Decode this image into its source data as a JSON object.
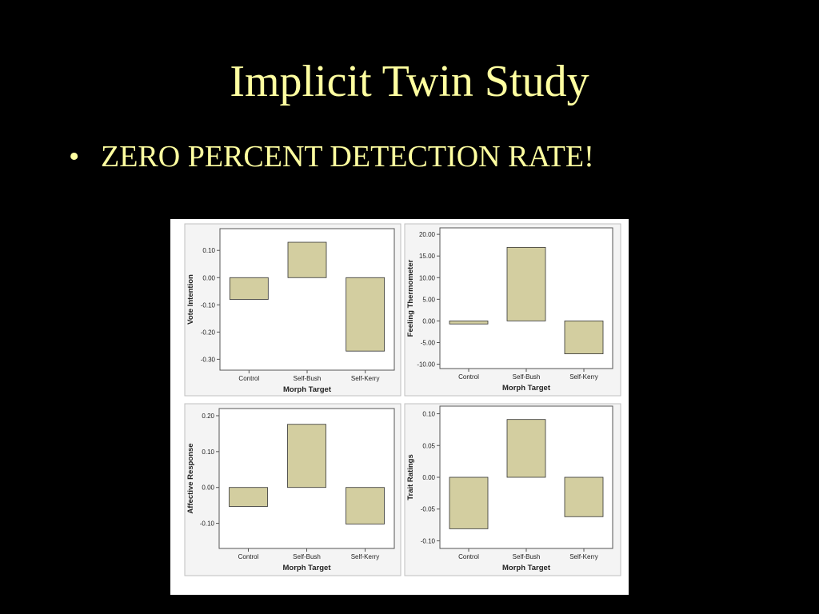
{
  "slide": {
    "title": "Implicit Twin Study",
    "bullet_marker": "•",
    "bullet_text": "ZERO PERCENT DETECTION RATE!",
    "colors": {
      "background": "#000000",
      "text": "#FFFFA0",
      "bar_fill": "#d3cea0"
    }
  },
  "chart_data": [
    {
      "type": "bar",
      "ylabel": "Vote Intention",
      "xlabel": "Morph Target",
      "categories": [
        "Control",
        "Self-Bush",
        "Self-Kerry"
      ],
      "values": [
        -0.08,
        0.13,
        -0.27
      ],
      "yticks": [
        "0.10",
        "0.00",
        "-0.10",
        "-0.20",
        "-0.30"
      ],
      "ylim": [
        -0.34,
        0.18
      ],
      "grid": false
    },
    {
      "type": "bar",
      "ylabel": "Feeling Thermometer",
      "xlabel": "Morph Target",
      "categories": [
        "Control",
        "Self-Bush",
        "Self-Kerry"
      ],
      "values": [
        -0.7,
        17.0,
        -7.6
      ],
      "yticks": [
        "20.00",
        "15.00",
        "10.00",
        "5.00",
        "0.00",
        "-5.00",
        "-10.00"
      ],
      "ylim": [
        -11.0,
        21.5
      ],
      "grid": false
    },
    {
      "type": "bar",
      "ylabel": "Affective Response",
      "xlabel": "Morph Target",
      "categories": [
        "Control",
        "Self-Bush",
        "Self-Kerry"
      ],
      "values": [
        -0.053,
        0.176,
        -0.102
      ],
      "yticks": [
        "0.20",
        "0.10",
        "0.00",
        "-0.10"
      ],
      "ylim": [
        -0.17,
        0.22
      ],
      "grid": false
    },
    {
      "type": "bar",
      "ylabel": "Trait Ratings",
      "xlabel": "Morph Target",
      "categories": [
        "Control",
        "Self-Bush",
        "Self-Kerry"
      ],
      "values": [
        -0.081,
        0.091,
        -0.062
      ],
      "yticks": [
        "0.10",
        "0.05",
        "0.00",
        "-0.05",
        "-0.10"
      ],
      "ylim": [
        -0.112,
        0.112
      ],
      "grid": false
    }
  ]
}
